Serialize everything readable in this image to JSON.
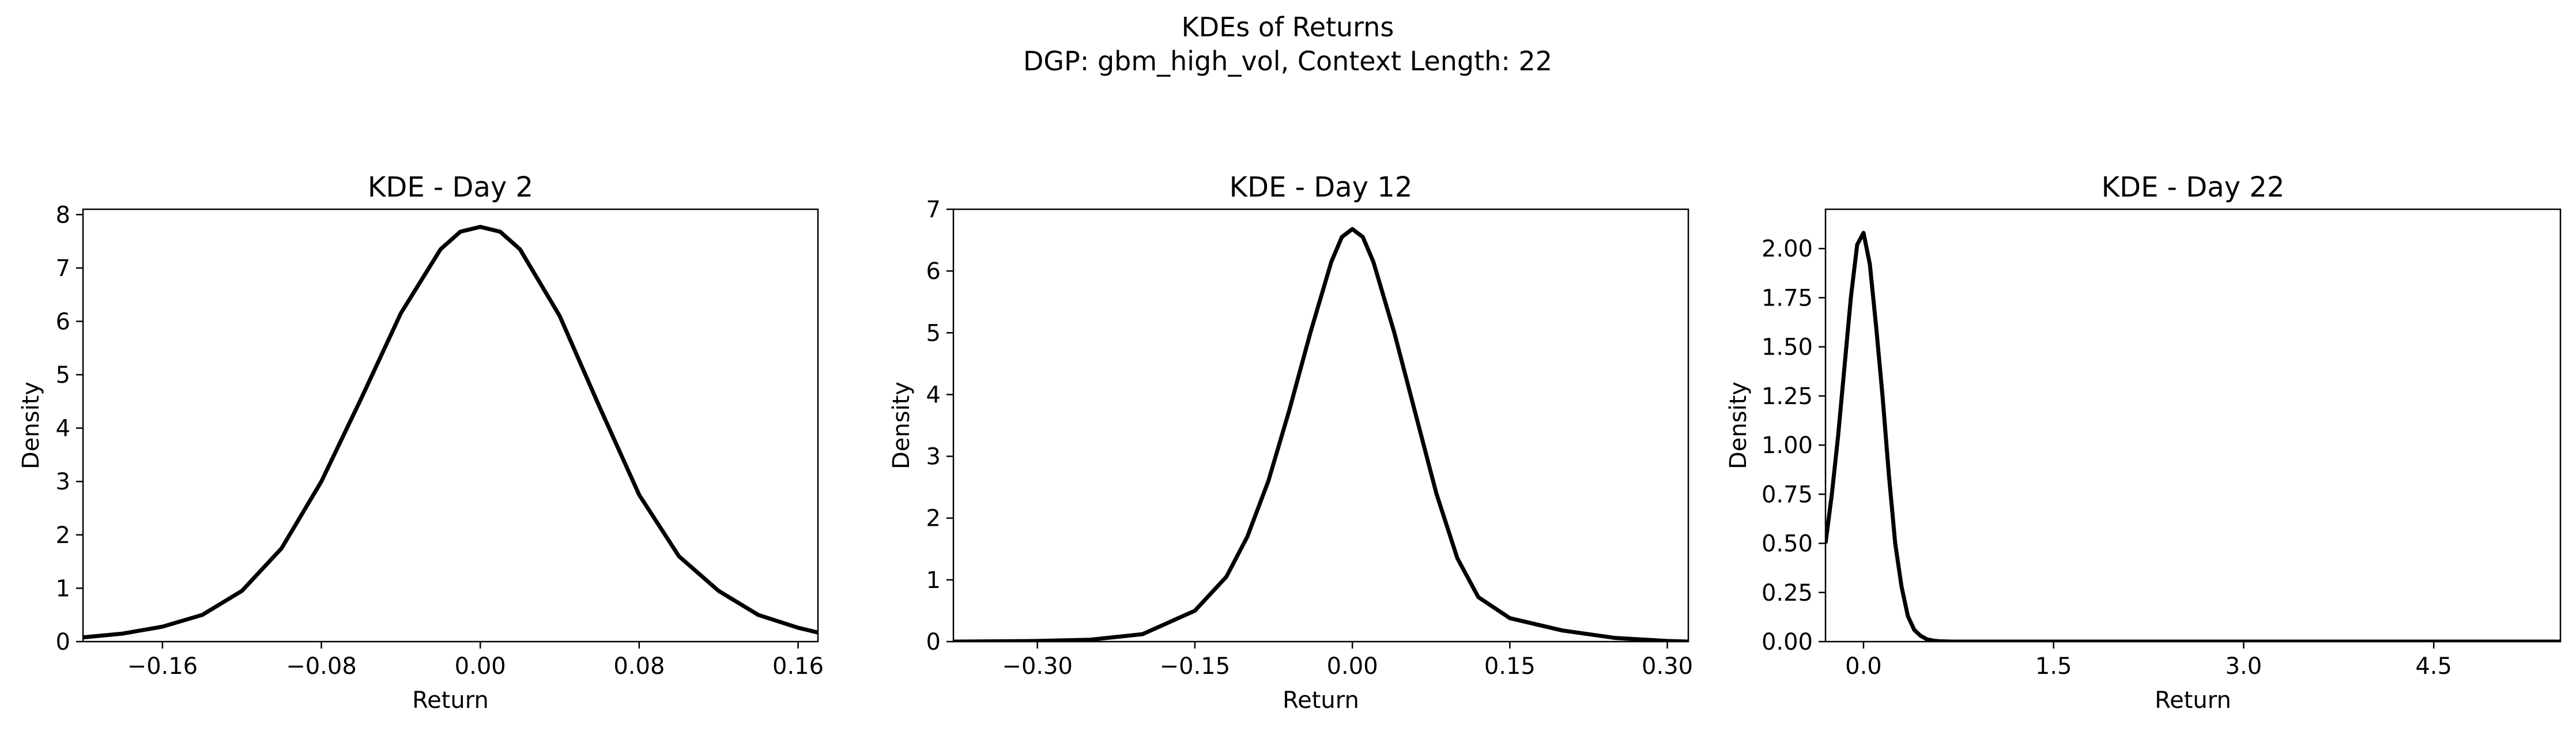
{
  "suptitle": {
    "line1": "KDEs of Returns",
    "line2": "DGP: gbm_high_vol, Context Length: 22"
  },
  "colors": {
    "line": "#000000",
    "axes": "#000000",
    "background": "#ffffff"
  },
  "chart_data": [
    {
      "type": "line",
      "title": "KDE - Day 2",
      "xlabel": "Return",
      "ylabel": "Density",
      "xlim": [
        -0.2,
        0.17
      ],
      "ylim": [
        0,
        8.1
      ],
      "xticks": [
        -0.16,
        -0.08,
        0.0,
        0.08,
        0.16
      ],
      "xtick_labels": [
        "−0.16",
        "−0.08",
        "0.00",
        "0.08",
        "0.16"
      ],
      "yticks": [
        0,
        1,
        2,
        3,
        4,
        5,
        6,
        7,
        8
      ],
      "ytick_labels": [
        "0",
        "1",
        "2",
        "3",
        "4",
        "5",
        "6",
        "7",
        "8"
      ],
      "grid": false,
      "series": [
        {
          "x": [
            -0.2,
            -0.18,
            -0.16,
            -0.14,
            -0.12,
            -0.1,
            -0.08,
            -0.06,
            -0.04,
            -0.02,
            -0.01,
            0.0,
            0.01,
            0.02,
            0.04,
            0.06,
            0.08,
            0.1,
            0.12,
            0.14,
            0.16,
            0.17
          ],
          "y": [
            0.08,
            0.15,
            0.28,
            0.5,
            0.95,
            1.75,
            3.0,
            4.55,
            6.15,
            7.35,
            7.68,
            7.77,
            7.68,
            7.35,
            6.1,
            4.4,
            2.75,
            1.6,
            0.95,
            0.5,
            0.26,
            0.17
          ]
        }
      ]
    },
    {
      "type": "line",
      "title": "KDE - Day 12",
      "xlabel": "Return",
      "ylabel": "Density",
      "xlim": [
        -0.38,
        0.32
      ],
      "ylim": [
        0,
        7
      ],
      "xticks": [
        -0.3,
        -0.15,
        0.0,
        0.15,
        0.3
      ],
      "xtick_labels": [
        "−0.30",
        "−0.15",
        "0.00",
        "0.15",
        "0.30"
      ],
      "yticks": [
        0,
        1,
        2,
        3,
        4,
        5,
        6,
        7
      ],
      "ytick_labels": [
        "0",
        "1",
        "2",
        "3",
        "4",
        "5",
        "6",
        "7"
      ],
      "grid": false,
      "series": [
        {
          "x": [
            -0.38,
            -0.3,
            -0.25,
            -0.2,
            -0.15,
            -0.12,
            -0.1,
            -0.08,
            -0.06,
            -0.04,
            -0.02,
            -0.01,
            0.0,
            0.01,
            0.02,
            0.04,
            0.06,
            0.08,
            0.1,
            0.12,
            0.15,
            0.2,
            0.25,
            0.3,
            0.32
          ],
          "y": [
            0.0,
            0.01,
            0.03,
            0.12,
            0.5,
            1.05,
            1.7,
            2.6,
            3.75,
            5.0,
            6.15,
            6.55,
            6.68,
            6.55,
            6.15,
            5.0,
            3.7,
            2.4,
            1.35,
            0.72,
            0.38,
            0.18,
            0.06,
            0.01,
            0.0
          ]
        }
      ]
    },
    {
      "type": "line",
      "title": "KDE - Day 22",
      "xlabel": "Return",
      "ylabel": "Density",
      "xlim": [
        -0.3,
        5.5
      ],
      "ylim": [
        0,
        2.2
      ],
      "xticks": [
        0.0,
        1.5,
        3.0,
        4.5
      ],
      "xtick_labels": [
        "0.0",
        "1.5",
        "3.0",
        "4.5"
      ],
      "yticks": [
        0.0,
        0.25,
        0.5,
        0.75,
        1.0,
        1.25,
        1.5,
        1.75,
        2.0
      ],
      "ytick_labels": [
        "0.00",
        "0.25",
        "0.50",
        "0.75",
        "1.00",
        "1.25",
        "1.50",
        "1.75",
        "2.00"
      ],
      "grid": false,
      "series": [
        {
          "x": [
            -0.3,
            -0.25,
            -0.2,
            -0.15,
            -0.1,
            -0.05,
            0.0,
            0.05,
            0.1,
            0.15,
            0.2,
            0.25,
            0.3,
            0.35,
            0.4,
            0.45,
            0.5,
            0.55,
            0.6,
            0.7,
            0.8,
            1.0,
            1.5,
            2.0,
            3.0,
            4.0,
            5.0,
            5.5
          ],
          "y": [
            0.5,
            0.75,
            1.05,
            1.4,
            1.75,
            2.02,
            2.08,
            1.92,
            1.6,
            1.25,
            0.85,
            0.5,
            0.28,
            0.13,
            0.06,
            0.03,
            0.012,
            0.005,
            0.002,
            0.0,
            0.0,
            0.0,
            0.0,
            0.0,
            0.0,
            0.0,
            0.0,
            0.0
          ]
        }
      ]
    }
  ]
}
